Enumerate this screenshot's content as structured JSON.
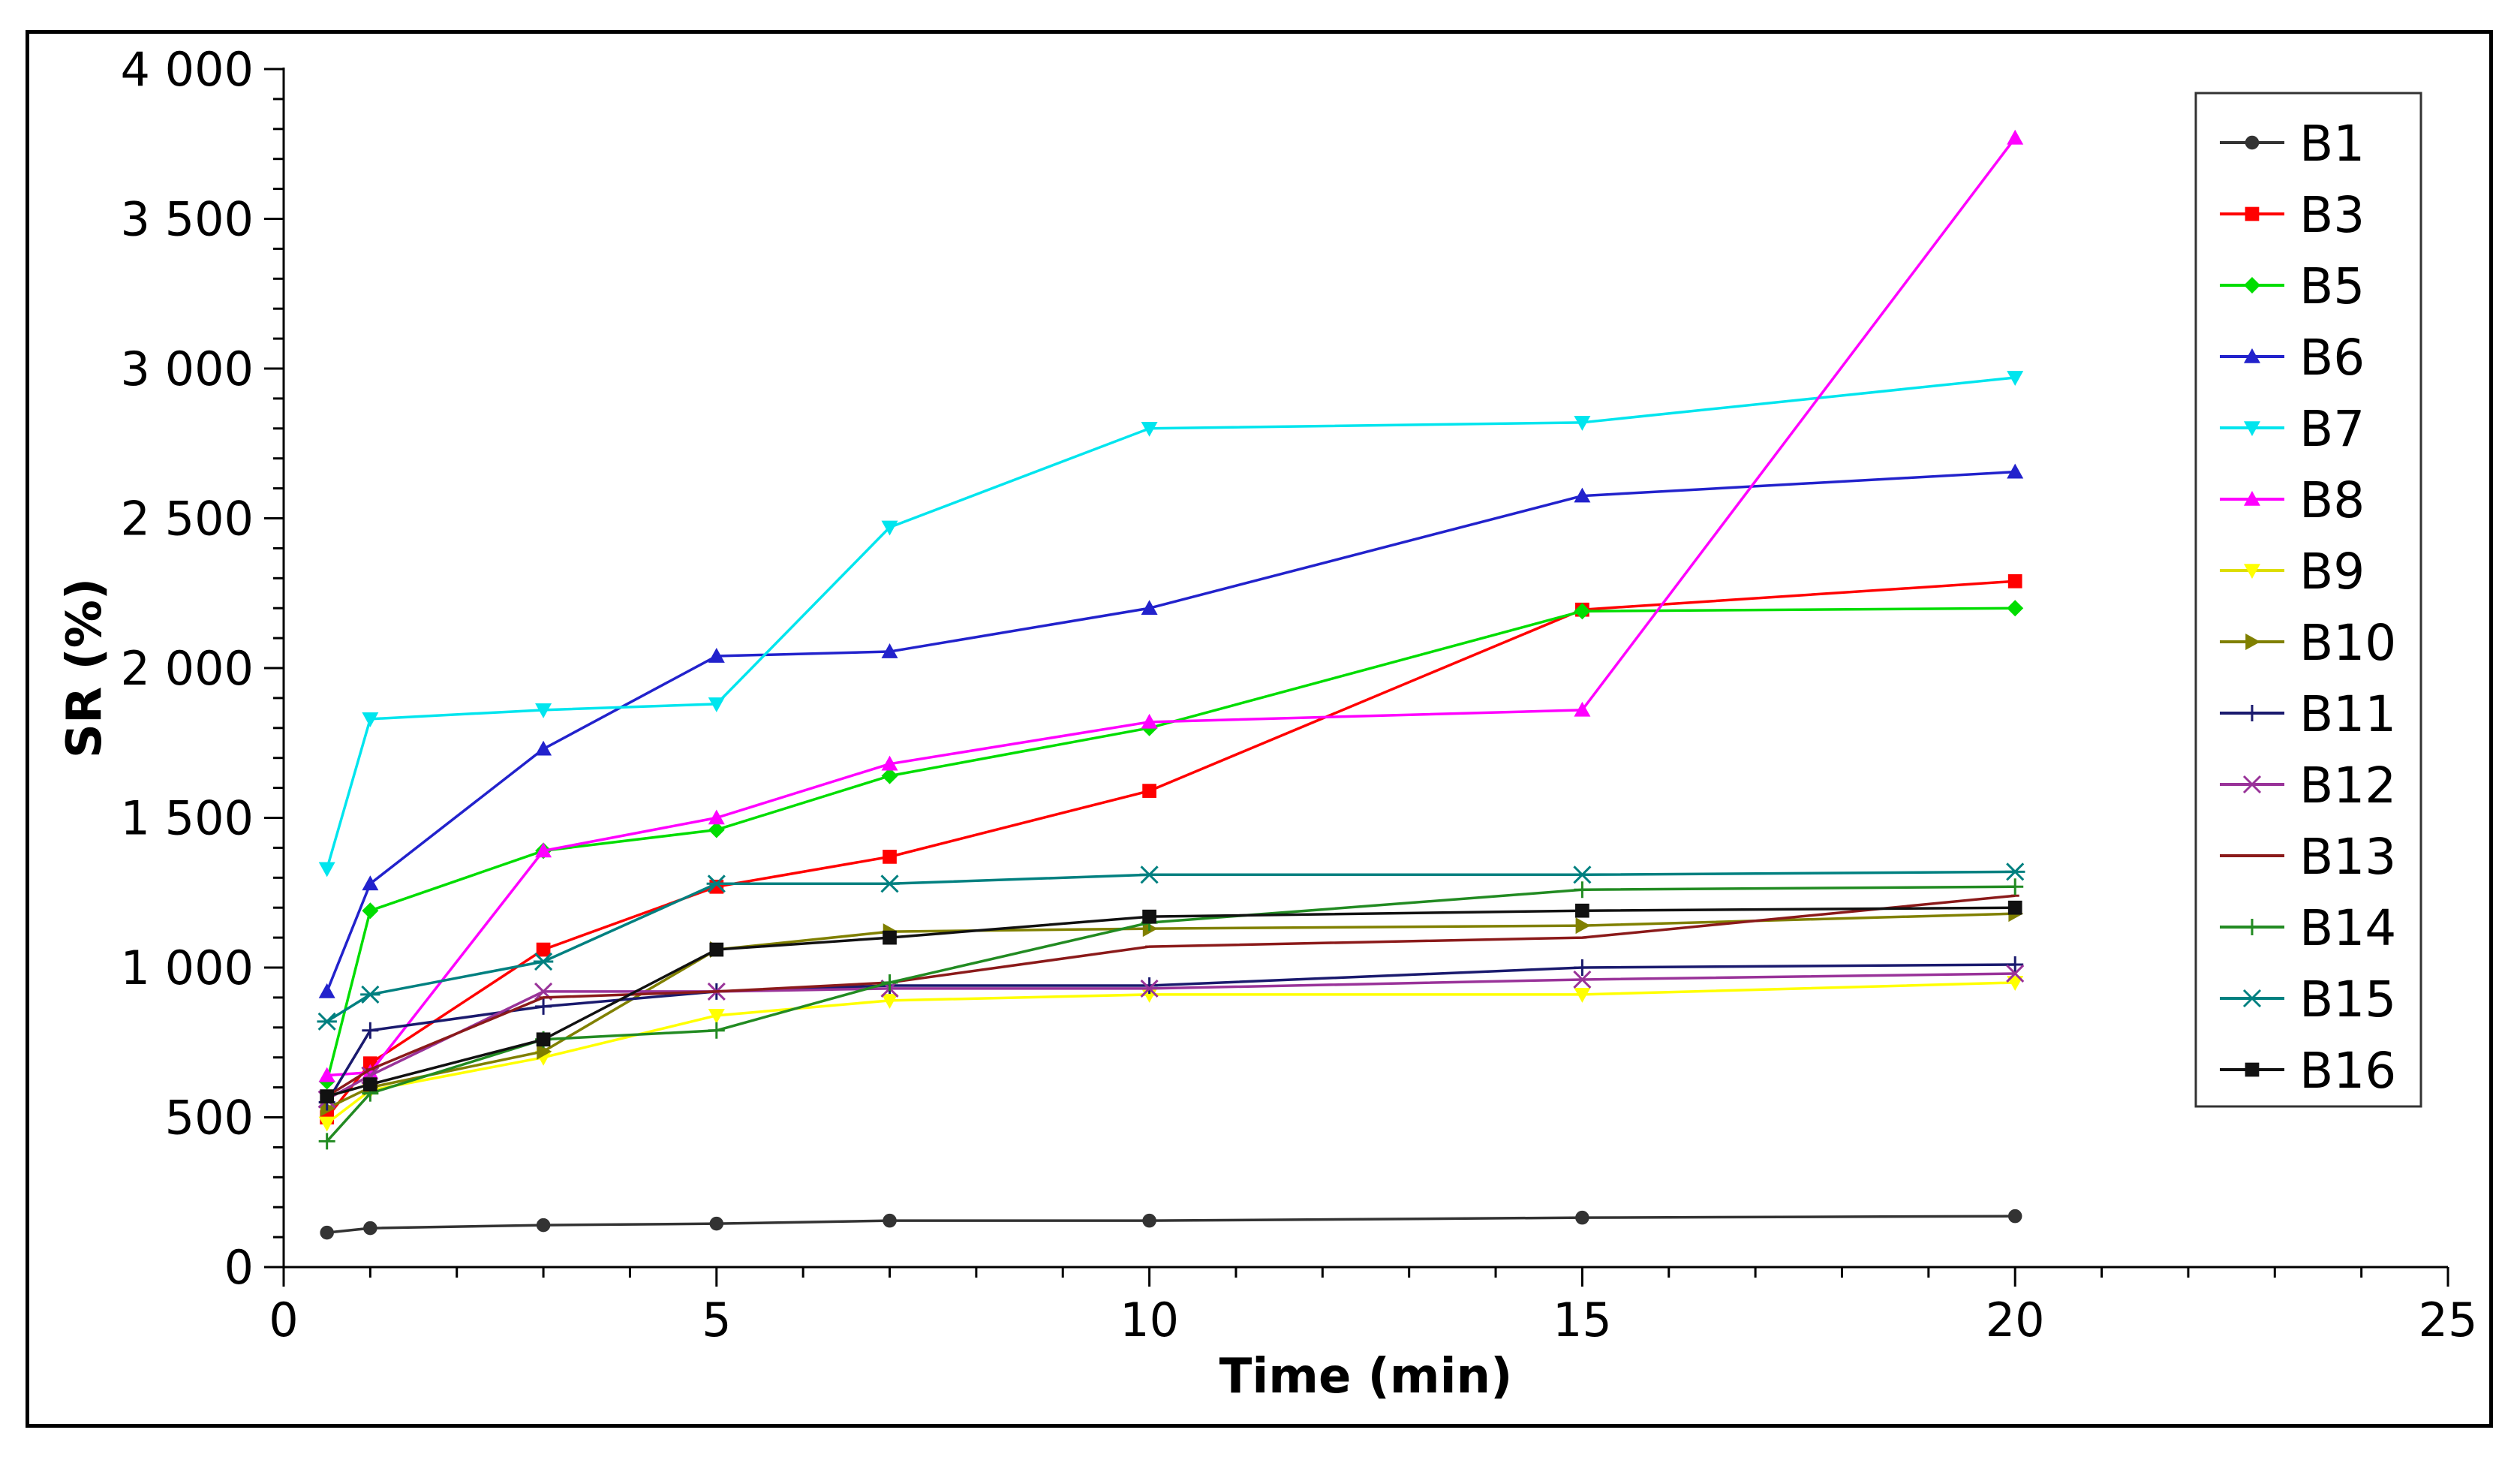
{
  "chart_data": {
    "type": "line",
    "title": "",
    "xlabel": "Time (min)",
    "ylabel": "SR (%)",
    "xlim": [
      0,
      25
    ],
    "ylim": [
      0,
      4000
    ],
    "x_ticks": [
      0,
      5,
      10,
      15,
      20,
      25
    ],
    "x_tick_labels": [
      "0",
      "5",
      "10",
      "15",
      "20",
      "25"
    ],
    "y_ticks": [
      0,
      500,
      1000,
      1500,
      2000,
      2500,
      3000,
      3500,
      4000
    ],
    "y_tick_labels": [
      "0",
      "500",
      "1 000",
      "1 500",
      "2 000",
      "2 500",
      "3 000",
      "3 500",
      "4 000"
    ],
    "grid": false,
    "legend_position": "right",
    "x": [
      0.5,
      1,
      3,
      5,
      7,
      10,
      15,
      20
    ],
    "series": [
      {
        "name": "B1",
        "color": "#333333",
        "marker": "circle",
        "values": [
          115,
          130,
          140,
          145,
          155,
          155,
          165,
          170
        ]
      },
      {
        "name": "B3",
        "color": "#ff0000",
        "marker": "square",
        "values": [
          500,
          680,
          1060,
          1270,
          1370,
          1590,
          2195,
          2290
        ]
      },
      {
        "name": "B5",
        "color": "#00dd00",
        "marker": "diamond",
        "values": [
          620,
          1190,
          1390,
          1460,
          1640,
          1800,
          2190,
          2200
        ]
      },
      {
        "name": "B6",
        "color": "#2222cc",
        "marker": "triangle-up",
        "values": [
          920,
          1280,
          1730,
          2040,
          2055,
          2200,
          2575,
          2655
        ]
      },
      {
        "name": "B7",
        "color": "#00e5ee",
        "marker": "triangle-down",
        "values": [
          1330,
          1830,
          1860,
          1880,
          2470,
          2800,
          2820,
          2970
        ]
      },
      {
        "name": "B8",
        "color": "#ff00ff",
        "marker": "triangle-up",
        "values": [
          640,
          650,
          1390,
          1500,
          1680,
          1820,
          1860,
          3770
        ]
      },
      {
        "name": "B9",
        "color": "#ffff00",
        "marker": "triangle-down",
        "values": [
          480,
          590,
          700,
          840,
          890,
          910,
          910,
          950
        ]
      },
      {
        "name": "B10",
        "color": "#808000",
        "marker": "triangle-right",
        "values": [
          530,
          600,
          720,
          1060,
          1120,
          1130,
          1140,
          1180
        ]
      },
      {
        "name": "B11",
        "color": "#1a1a6e",
        "marker": "plus",
        "values": [
          550,
          790,
          870,
          920,
          940,
          940,
          1000,
          1010
        ]
      },
      {
        "name": "B12",
        "color": "#993399",
        "marker": "cross",
        "values": [
          560,
          640,
          920,
          920,
          930,
          930,
          960,
          980
        ]
      },
      {
        "name": "B13",
        "color": "#8b1a1a",
        "marker": "line",
        "values": [
          570,
          660,
          900,
          920,
          950,
          1070,
          1100,
          1240
        ]
      },
      {
        "name": "B14",
        "color": "#228b22",
        "marker": "plus",
        "values": [
          420,
          580,
          760,
          790,
          950,
          1150,
          1260,
          1270
        ]
      },
      {
        "name": "B15",
        "color": "#008080",
        "marker": "star",
        "values": [
          820,
          910,
          1020,
          1280,
          1280,
          1310,
          1310,
          1320
        ]
      },
      {
        "name": "B16",
        "color": "#111111",
        "marker": "square",
        "values": [
          570,
          610,
          760,
          1060,
          1100,
          1170,
          1190,
          1200
        ]
      }
    ]
  }
}
